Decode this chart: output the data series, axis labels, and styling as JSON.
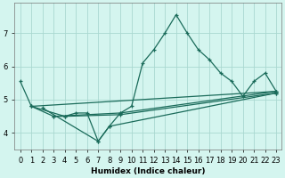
{
  "xlabel": "Humidex (Indice chaleur)",
  "bg_color": "#d4f5ef",
  "grid_color": "#aad8d0",
  "line_color": "#1a6b5a",
  "xlim": [
    -0.5,
    23.5
  ],
  "ylim": [
    3.5,
    7.9
  ],
  "yticks": [
    4,
    5,
    6,
    7
  ],
  "series": [
    {
      "x": [
        0,
        1,
        3,
        4,
        5,
        6,
        7,
        8,
        9,
        10,
        11,
        12,
        13,
        14,
        15,
        16,
        17,
        18,
        19,
        20,
        21,
        22,
        23
      ],
      "y": [
        5.55,
        4.8,
        4.5,
        4.5,
        4.6,
        4.6,
        3.75,
        4.2,
        4.6,
        4.8,
        6.1,
        6.5,
        7.0,
        7.55,
        7.0,
        6.5,
        6.2,
        5.8,
        5.55,
        5.1,
        5.55,
        5.8,
        5.25
      ]
    },
    {
      "x": [
        1,
        23
      ],
      "y": [
        4.8,
        5.25
      ]
    },
    {
      "x": [
        3,
        9,
        23
      ],
      "y": [
        4.5,
        4.6,
        5.25
      ]
    },
    {
      "x": [
        1,
        4,
        9,
        23
      ],
      "y": [
        4.8,
        4.5,
        4.55,
        5.2
      ]
    },
    {
      "x": [
        2,
        7,
        8,
        23
      ],
      "y": [
        4.75,
        3.75,
        4.2,
        5.2
      ]
    }
  ]
}
